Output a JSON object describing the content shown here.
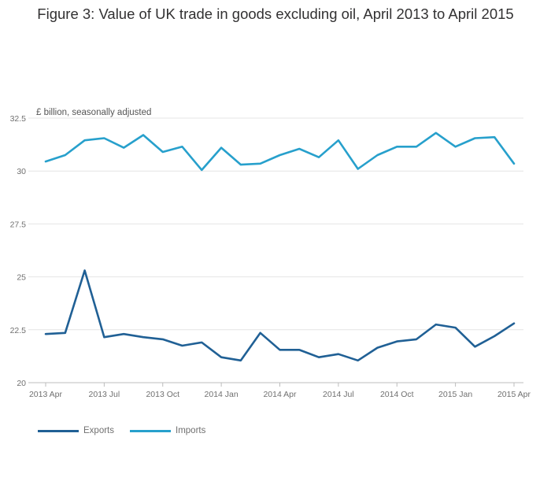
{
  "chart_data": {
    "type": "line",
    "title": "Figure 3: Value of UK trade in goods excluding oil, April 2013 to April 2015",
    "unit_label": "£ billion, seasonally adjusted",
    "ylim": [
      20,
      32.5
    ],
    "yticks": [
      {
        "value": 20,
        "label": "20"
      },
      {
        "value": 22.5,
        "label": "22.5"
      },
      {
        "value": 25,
        "label": "25"
      },
      {
        "value": 27.5,
        "label": "27.5"
      },
      {
        "value": 30,
        "label": "30"
      },
      {
        "value": 32.5,
        "label": "32.5"
      }
    ],
    "x": [
      "2013 Apr",
      "2013 May",
      "2013 Jun",
      "2013 Jul",
      "2013 Aug",
      "2013 Sep",
      "2013 Oct",
      "2013 Nov",
      "2013 Dec",
      "2014 Jan",
      "2014 Feb",
      "2014 Mar",
      "2014 Apr",
      "2014 May",
      "2014 Jun",
      "2014 Jul",
      "2014 Aug",
      "2014 Sep",
      "2014 Oct",
      "2014 Nov",
      "2014 Dec",
      "2015 Jan",
      "2015 Feb",
      "2015 Mar",
      "2015 Apr"
    ],
    "xtick_labels": [
      "2013 Apr",
      "2013 Jul",
      "2013 Oct",
      "2014 Jan",
      "2014 Apr",
      "2014 Jul",
      "2014 Oct",
      "2015 Jan",
      "2015 Apr"
    ],
    "xtick_index": [
      0,
      3,
      6,
      9,
      12,
      15,
      18,
      21,
      24
    ],
    "series": [
      {
        "name": "Exports",
        "color": "#206095",
        "values": [
          22.3,
          22.35,
          25.3,
          22.15,
          22.3,
          22.15,
          22.05,
          21.75,
          21.9,
          21.2,
          21.05,
          22.35,
          21.55,
          21.55,
          21.2,
          21.35,
          21.05,
          21.65,
          21.95,
          22.05,
          22.75,
          22.6,
          21.7,
          22.2,
          22.8
        ]
      },
      {
        "name": "Imports",
        "color": "#27a0cc",
        "values": [
          30.45,
          30.75,
          31.45,
          31.55,
          31.1,
          31.7,
          30.9,
          31.15,
          30.05,
          31.1,
          30.3,
          30.35,
          30.75,
          31.05,
          30.65,
          31.45,
          30.1,
          30.75,
          31.15,
          31.15,
          31.8,
          31.15,
          31.55,
          31.6,
          30.35
        ]
      }
    ],
    "grid": true,
    "legend_position": "bottom-left"
  }
}
